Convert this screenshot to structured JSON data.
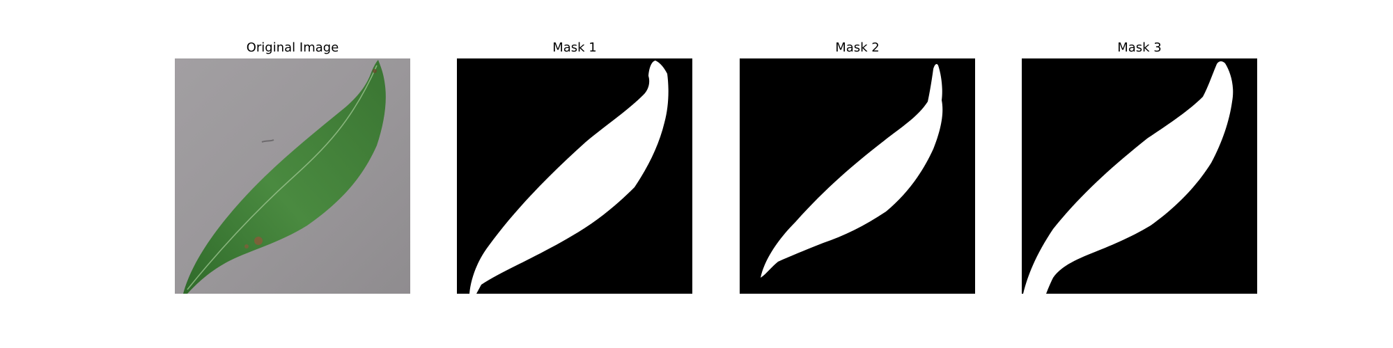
{
  "panels": [
    {
      "title": "Original Image"
    },
    {
      "title": "Mask 1"
    },
    {
      "title": "Mask 2"
    },
    {
      "title": "Mask 3"
    }
  ],
  "colors": {
    "background": "#ffffff",
    "mask_foreground": "#ffffff",
    "mask_background": "#000000",
    "leaf_green": "#3f7a37",
    "surface_gray": "#9a979a"
  }
}
